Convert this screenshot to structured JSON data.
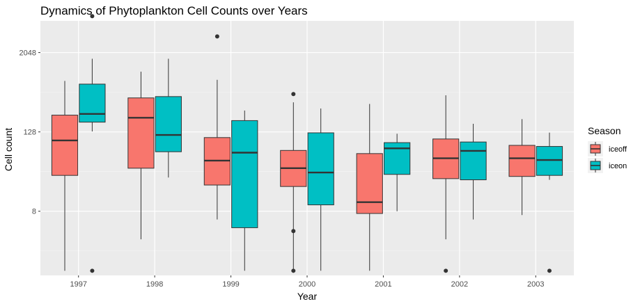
{
  "chart_data": {
    "type": "box",
    "title": "Dynamics of Phytoplankton Cell Counts over Years",
    "xlabel": "Year",
    "ylabel": "Cell count",
    "y_scale": "log2",
    "ylim": [
      0.85,
      6200
    ],
    "y_ticks": [
      8,
      128,
      2048
    ],
    "y_tick_labels": [
      "8",
      "128",
      "2048"
    ],
    "categories": [
      "1997",
      "1998",
      "1999",
      "2000",
      "2001",
      "2002",
      "2003"
    ],
    "legend_title": "Season",
    "legend_position": "right",
    "grid": true,
    "series": [
      {
        "name": "iceoff",
        "color": "#F8766D",
        "boxes": [
          {
            "min": 1.0,
            "q1": 28,
            "median": 95,
            "q3": 230,
            "max": 760,
            "outliers": []
          },
          {
            "min": 3.0,
            "q1": 36,
            "median": 210,
            "q3": 420,
            "max": 1050,
            "outliers": []
          },
          {
            "min": 6.0,
            "q1": 20,
            "median": 47,
            "q3": 105,
            "max": 790,
            "outliers": [
              3600
            ]
          },
          {
            "min": 1.0,
            "q1": 19,
            "median": 36,
            "q3": 67,
            "max": 360,
            "outliers": [
              1.0,
              4.0,
              480
            ]
          },
          {
            "min": 1.0,
            "q1": 7.4,
            "median": 11,
            "q3": 60,
            "max": 340,
            "outliers": []
          },
          {
            "min": 3.0,
            "q1": 25,
            "median": 51,
            "q3": 100,
            "max": 460,
            "outliers": [
              1.0
            ]
          },
          {
            "min": 7.0,
            "q1": 27,
            "median": 51,
            "q3": 80,
            "max": 200,
            "outliers": []
          }
        ]
      },
      {
        "name": "iceon",
        "color": "#00BFC4",
        "boxes": [
          {
            "min": 130,
            "q1": 180,
            "median": 240,
            "q3": 680,
            "max": 1650,
            "outliers": [
              1.0,
              7300
            ]
          },
          {
            "min": 26,
            "q1": 64,
            "median": 115,
            "q3": 440,
            "max": 1650,
            "outliers": []
          },
          {
            "min": 1.0,
            "q1": 4.5,
            "median": 62,
            "q3": 190,
            "max": 270,
            "outliers": []
          },
          {
            "min": 1.0,
            "q1": 10,
            "median": 31,
            "q3": 124,
            "max": 290,
            "outliers": []
          },
          {
            "min": 8.0,
            "q1": 29,
            "median": 72,
            "q3": 88,
            "max": 120,
            "outliers": []
          },
          {
            "min": 6.0,
            "q1": 24,
            "median": 66,
            "q3": 90,
            "max": 170,
            "outliers": []
          },
          {
            "min": 24,
            "q1": 28,
            "median": 48,
            "q3": 77,
            "max": 125,
            "outliers": [
              1.0
            ]
          }
        ]
      }
    ]
  }
}
